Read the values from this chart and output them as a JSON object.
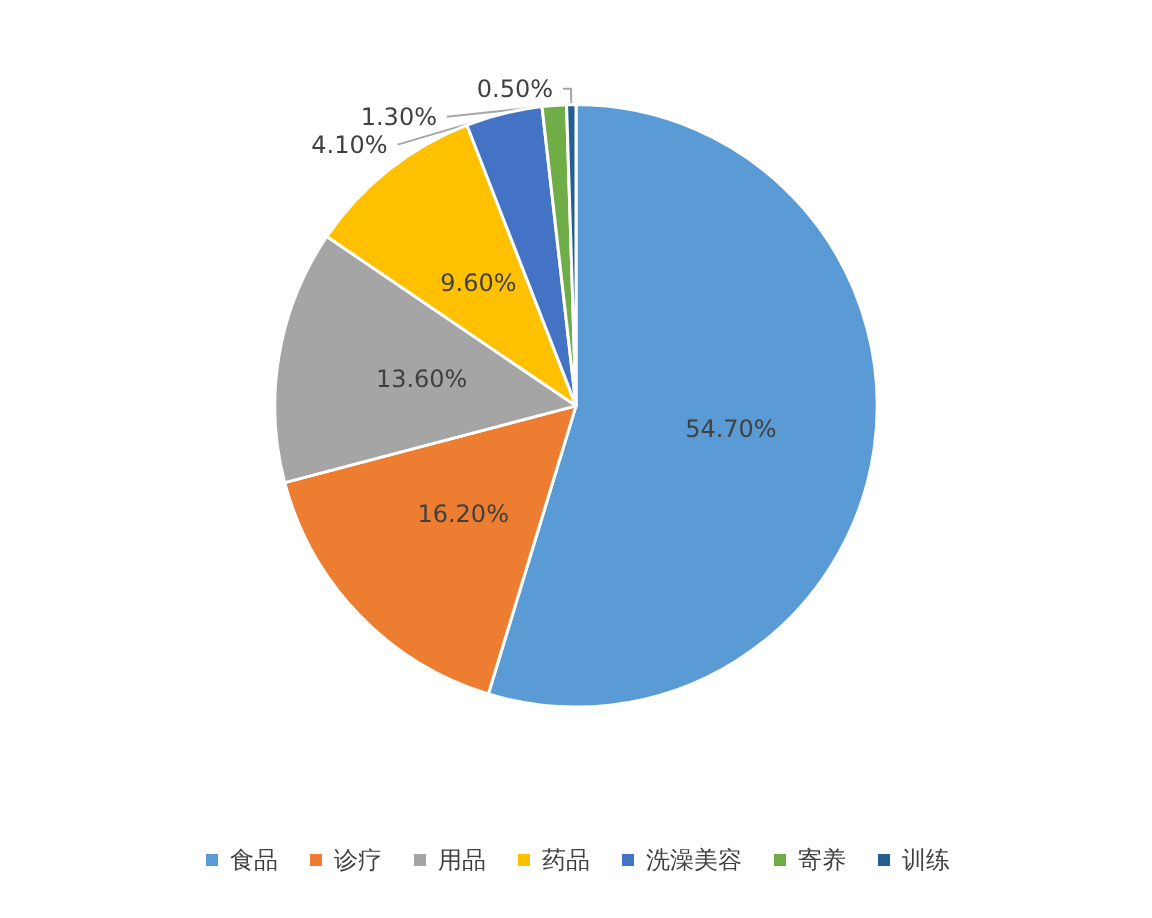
{
  "chart_data": {
    "type": "pie",
    "categories": [
      "食品",
      "诊疗",
      "用品",
      "药品",
      "洗澡美容",
      "寄养",
      "训练"
    ],
    "values": [
      54.7,
      16.2,
      13.6,
      9.6,
      4.1,
      1.3,
      0.5
    ],
    "value_labels": [
      "54.70%",
      "16.20%",
      "13.60%",
      "9.60%",
      "4.10%",
      "1.30%",
      "0.50%"
    ],
    "colors": [
      "#5b9bd5",
      "#ed7d31",
      "#a5a5a5",
      "#ffc000",
      "#4472c4",
      "#70ad47",
      "#255e91"
    ],
    "legend": "bottom"
  }
}
